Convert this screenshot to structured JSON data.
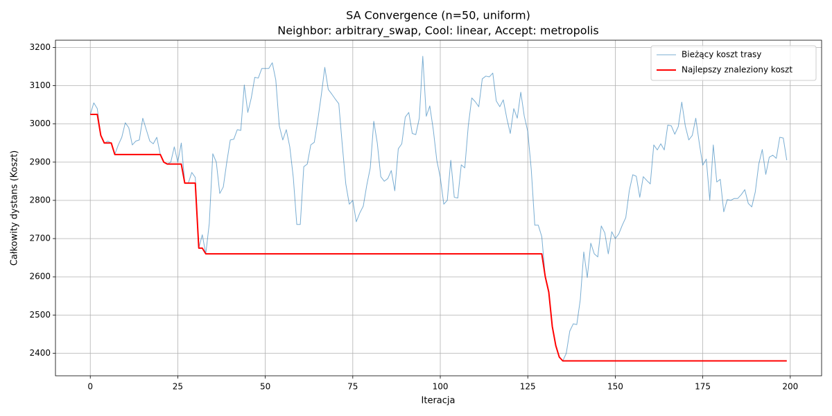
{
  "chart_data": {
    "type": "line",
    "title": "SA Convergence (n=50, uniform)",
    "subtitle": "Neighbor: arbitrary_swap, Cool: linear, Accept: metropolis",
    "x_label": "Iteracja",
    "y_label": "Całkowity dystans (Koszt)",
    "x": [
      0,
      1,
      2,
      3,
      4,
      5,
      6,
      7,
      8,
      9,
      10,
      11,
      12,
      13,
      14,
      15,
      16,
      17,
      18,
      19,
      20,
      21,
      22,
      23,
      24,
      25,
      26,
      27,
      28,
      29,
      30,
      31,
      32,
      33,
      34,
      35,
      36,
      37,
      38,
      39,
      40,
      41,
      42,
      43,
      44,
      45,
      46,
      47,
      48,
      49,
      50,
      51,
      52,
      53,
      54,
      55,
      56,
      57,
      58,
      59,
      60,
      61,
      62,
      63,
      64,
      65,
      66,
      67,
      68,
      69,
      70,
      71,
      72,
      73,
      74,
      75,
      76,
      77,
      78,
      79,
      80,
      81,
      82,
      83,
      84,
      85,
      86,
      87,
      88,
      89,
      90,
      91,
      92,
      93,
      94,
      95,
      96,
      97,
      98,
      99,
      100,
      101,
      102,
      103,
      104,
      105,
      106,
      107,
      108,
      109,
      110,
      111,
      112,
      113,
      114,
      115,
      116,
      117,
      118,
      119,
      120,
      121,
      122,
      123,
      124,
      125,
      126,
      127,
      128,
      129,
      130,
      131,
      132,
      133,
      134,
      135,
      136,
      137,
      138,
      139,
      140,
      141,
      142,
      143,
      144,
      145,
      146,
      147,
      148,
      149,
      150,
      151,
      152,
      153,
      154,
      155,
      156,
      157,
      158,
      159,
      160,
      161,
      162,
      163,
      164,
      165,
      166,
      167,
      168,
      169,
      170,
      171,
      172,
      173,
      174,
      175,
      176,
      177,
      178,
      179,
      180,
      181,
      182,
      183,
      184,
      185,
      186,
      187,
      188,
      189,
      190,
      191,
      192,
      193,
      194,
      195,
      196,
      197,
      198,
      199
    ],
    "series": [
      {
        "name": "Bieżący koszt trasy",
        "color": "#1f77b4",
        "width": 1,
        "opacity": 0.6,
        "values": [
          3025,
          3055,
          3040,
          2970,
          2950,
          2955,
          2950,
          2920,
          2945,
          2965,
          3003,
          2990,
          2945,
          2955,
          2958,
          3015,
          2985,
          2955,
          2948,
          2965,
          2920,
          2900,
          2895,
          2900,
          2940,
          2900,
          2950,
          2845,
          2845,
          2873,
          2860,
          2675,
          2710,
          2660,
          2740,
          2922,
          2900,
          2818,
          2835,
          2900,
          2958,
          2960,
          2985,
          2983,
          3102,
          3030,
          3068,
          3122,
          3120,
          3145,
          3145,
          3145,
          3160,
          3115,
          2995,
          2958,
          2985,
          2940,
          2860,
          2737,
          2737,
          2888,
          2895,
          2945,
          2952,
          3010,
          3075,
          3148,
          3090,
          3078,
          3065,
          3053,
          2945,
          2843,
          2790,
          2800,
          2744,
          2767,
          2785,
          2840,
          2885,
          3007,
          2950,
          2862,
          2850,
          2857,
          2878,
          2825,
          2935,
          2948,
          3018,
          3030,
          2975,
          2972,
          3015,
          3177,
          3020,
          3047,
          2985,
          2905,
          2860,
          2790,
          2800,
          2905,
          2808,
          2806,
          2893,
          2885,
          2995,
          3068,
          3058,
          3045,
          3118,
          3125,
          3123,
          3133,
          3060,
          3045,
          3063,
          3015,
          2975,
          3040,
          3015,
          3083,
          3020,
          2980,
          2880,
          2735,
          2735,
          2705,
          2600,
          2560,
          2470,
          2420,
          2390,
          2380,
          2400,
          2458,
          2477,
          2475,
          2540,
          2665,
          2598,
          2688,
          2660,
          2652,
          2733,
          2715,
          2660,
          2718,
          2700,
          2712,
          2735,
          2755,
          2825,
          2867,
          2863,
          2808,
          2862,
          2852,
          2843,
          2945,
          2932,
          2948,
          2932,
          2997,
          2995,
          2973,
          2993,
          3057,
          2995,
          2958,
          2970,
          3015,
          2950,
          2892,
          2908,
          2800,
          2945,
          2848,
          2855,
          2770,
          2802,
          2800,
          2805,
          2805,
          2815,
          2828,
          2792,
          2783,
          2822,
          2895,
          2933,
          2868,
          2913,
          2918,
          2910,
          2965,
          2963,
          2905
        ]
      },
      {
        "name": "Najlepszy znaleziony koszt",
        "color": "#ff0000",
        "width": 2,
        "opacity": 1,
        "values": [
          3025,
          3025,
          3025,
          2970,
          2950,
          2950,
          2950,
          2920,
          2920,
          2920,
          2920,
          2920,
          2920,
          2920,
          2920,
          2920,
          2920,
          2920,
          2920,
          2920,
          2920,
          2900,
          2895,
          2895,
          2895,
          2895,
          2895,
          2845,
          2845,
          2845,
          2845,
          2675,
          2675,
          2660,
          2660,
          2660,
          2660,
          2660,
          2660,
          2660,
          2660,
          2660,
          2660,
          2660,
          2660,
          2660,
          2660,
          2660,
          2660,
          2660,
          2660,
          2660,
          2660,
          2660,
          2660,
          2660,
          2660,
          2660,
          2660,
          2660,
          2660,
          2660,
          2660,
          2660,
          2660,
          2660,
          2660,
          2660,
          2660,
          2660,
          2660,
          2660,
          2660,
          2660,
          2660,
          2660,
          2660,
          2660,
          2660,
          2660,
          2660,
          2660,
          2660,
          2660,
          2660,
          2660,
          2660,
          2660,
          2660,
          2660,
          2660,
          2660,
          2660,
          2660,
          2660,
          2660,
          2660,
          2660,
          2660,
          2660,
          2660,
          2660,
          2660,
          2660,
          2660,
          2660,
          2660,
          2660,
          2660,
          2660,
          2660,
          2660,
          2660,
          2660,
          2660,
          2660,
          2660,
          2660,
          2660,
          2660,
          2660,
          2660,
          2660,
          2660,
          2660,
          2660,
          2660,
          2660,
          2660,
          2660,
          2600,
          2560,
          2470,
          2420,
          2390,
          2380,
          2380,
          2380,
          2380,
          2380,
          2380,
          2380,
          2380,
          2380,
          2380,
          2380,
          2380,
          2380,
          2380,
          2380,
          2380,
          2380,
          2380,
          2380,
          2380,
          2380,
          2380,
          2380,
          2380,
          2380,
          2380,
          2380,
          2380,
          2380,
          2380,
          2380,
          2380,
          2380,
          2380,
          2380,
          2380,
          2380,
          2380,
          2380,
          2380,
          2380,
          2380,
          2380,
          2380,
          2380,
          2380,
          2380,
          2380,
          2380,
          2380,
          2380,
          2380,
          2380,
          2380,
          2380,
          2380,
          2380,
          2380,
          2380,
          2380,
          2380,
          2380,
          2380,
          2380,
          2380
        ]
      }
    ],
    "xlim": [
      -9.95,
      208.95
    ],
    "xticks": [
      0,
      25,
      50,
      75,
      100,
      125,
      150,
      175,
      200
    ],
    "ylim": [
      2341,
      3219
    ],
    "yticks": [
      2400,
      2500,
      2600,
      2700,
      2800,
      2900,
      3000,
      3100,
      3200
    ],
    "grid": true,
    "legend": "upper right"
  }
}
